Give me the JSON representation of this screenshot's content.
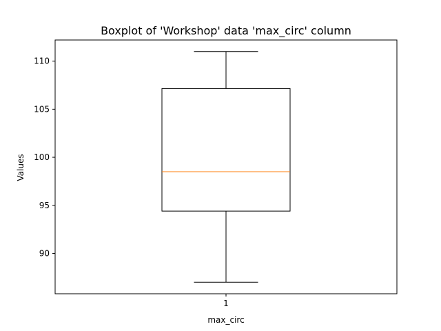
{
  "chart_data": {
    "type": "boxplot",
    "title": "Boxplot of 'Workshop' data 'max_circ' column",
    "xlabel": "max_circ",
    "ylabel": "Values",
    "categories": [
      "1"
    ],
    "boxes": [
      {
        "category": "1",
        "whisker_low": 87.0,
        "q1": 94.4,
        "median": 98.5,
        "q3": 107.15,
        "whisker_high": 111.0
      }
    ],
    "ylim": [
      85.8,
      112.2
    ],
    "yticks": [
      90,
      95,
      100,
      105,
      110
    ],
    "grid": false,
    "colors": {
      "box": "#000000",
      "median": "#ff7f0e",
      "axes": "#000000"
    }
  }
}
